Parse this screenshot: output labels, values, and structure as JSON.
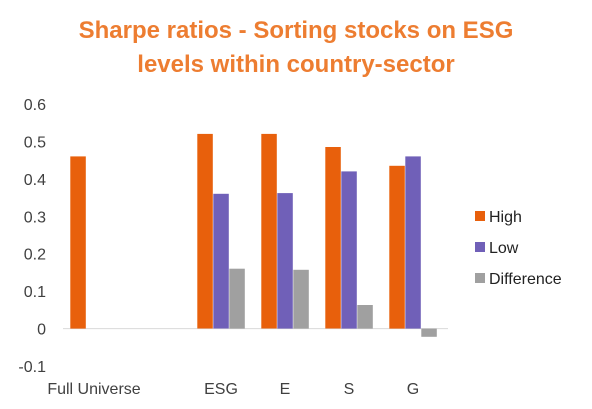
{
  "chart_data": {
    "type": "bar",
    "title_line1": "Sharpe ratios - Sorting stocks on ESG",
    "title_line2": "levels within country-sector",
    "categories": [
      "Full Universe",
      "",
      "ESG",
      "E",
      "S",
      "G"
    ],
    "series": [
      {
        "name": "High",
        "color": "#E8600C",
        "values": [
          0.46,
          null,
          0.52,
          0.52,
          0.485,
          0.435
        ]
      },
      {
        "name": "Low",
        "color": "#7060B8",
        "values": [
          null,
          null,
          0.36,
          0.362,
          0.42,
          0.46
        ]
      },
      {
        "name": "Difference",
        "color": "#A0A0A0",
        "values": [
          null,
          null,
          0.16,
          0.157,
          0.063,
          -0.022
        ]
      }
    ],
    "yticks": [
      "0.6",
      "0.5",
      "0.4",
      "0.3",
      "0.2",
      "0.1",
      "0",
      "-0.1"
    ],
    "ylim": [
      -0.1,
      0.6
    ],
    "grid": false,
    "legend_position": "right"
  }
}
